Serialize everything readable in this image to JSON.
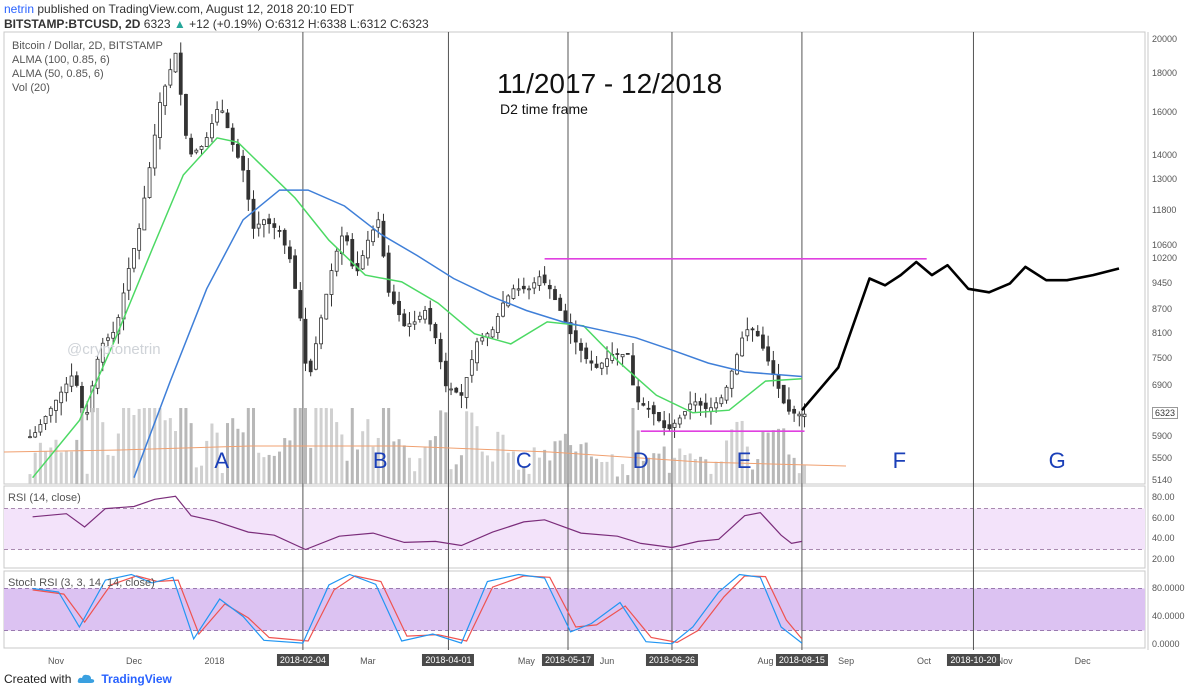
{
  "header": {
    "author": "netrin",
    "published_text": "published on TradingView.com, August 12, 2018 20:10 EDT",
    "symbol": "BITSTAMP:BTCUSD, 2D",
    "last_price": "6323",
    "change": "+12 (+0.19%)",
    "ohlc": [
      {
        "label": "O:",
        "value": "6312"
      },
      {
        "label": "H:",
        "value": "6338"
      },
      {
        "label": "L:",
        "value": "6312"
      },
      {
        "label": "C:",
        "value": "6323"
      }
    ]
  },
  "overlay_labels": [
    "Bitcoin / Dollar, 2D, BITSTAMP",
    "ALMA (100, 0.85, 6)",
    "ALMA (50, 0.85, 6)",
    "Vol (20)"
  ],
  "annotations": {
    "title": "11/2017 - 12/2018",
    "subtitle": "D2 time frame",
    "watermark": "@cryptonetrin",
    "waves": [
      "A",
      "B",
      "C",
      "D",
      "E",
      "F",
      "G"
    ]
  },
  "footer": {
    "created_with": "Created with",
    "brand": "TradingView"
  },
  "colors": {
    "alma_fast": "#4cd964",
    "alma_slow": "#3f7fd8",
    "vol_ma": "#f0a070",
    "magenta": "#e040e0",
    "rsi_line": "#7b2d7b",
    "rsi_band": "#f3e3fa",
    "stoch_band": "#dcc2f2",
    "stoch_k": "#2196f3",
    "stoch_d": "#ef5350",
    "wave_text": "#1a3fb8"
  },
  "chart_data": {
    "type": "candlestick",
    "title": "Bitcoin / Dollar, 2D, BITSTAMP",
    "price_axis": {
      "scale": "log",
      "ticks": [
        20000,
        18000,
        16000,
        14000,
        13000,
        11800,
        10600,
        10200,
        9450,
        8700,
        8100,
        7500,
        6900,
        6323,
        5900,
        5500,
        5140
      ]
    },
    "x_axis_labels": [
      "Nov",
      "Dec",
      "2018",
      "2018-02-04",
      "Mar",
      "2018-04-01",
      "May",
      "2018-05-17",
      "Jun",
      "2018-06-26",
      "Aug",
      "2018-08-15",
      "Sep",
      "Oct",
      "2018-10-20",
      "Nov",
      "Dec"
    ],
    "boxed_x_labels": [
      "2018-02-04",
      "2018-04-01",
      "2018-05-17",
      "2018-06-26",
      "2018-08-15",
      "2018-10-20"
    ],
    "vertical_divider_dates": [
      "2018-02-04",
      "2018-04-01",
      "2018-05-17",
      "2018-06-26",
      "2018-08-15",
      "2018-10-20"
    ],
    "price_close_path": [
      [
        "2017-10-23",
        5900
      ],
      [
        "2017-11-01",
        6600
      ],
      [
        "2017-11-08",
        7200
      ],
      [
        "2017-11-12",
        6100
      ],
      [
        "2017-11-18",
        7800
      ],
      [
        "2017-11-24",
        8200
      ],
      [
        "2017-11-29",
        9900
      ],
      [
        "2017-12-03",
        11200
      ],
      [
        "2017-12-07",
        13500
      ],
      [
        "2017-12-11",
        16500
      ],
      [
        "2017-12-17",
        19200
      ],
      [
        "2017-12-22",
        14000
      ],
      [
        "2017-12-28",
        14500
      ],
      [
        "2018-01-03",
        16500
      ],
      [
        "2018-01-08",
        14500
      ],
      [
        "2018-01-12",
        13400
      ],
      [
        "2018-01-16",
        11200
      ],
      [
        "2018-01-20",
        11500
      ],
      [
        "2018-01-26",
        11100
      ],
      [
        "2018-01-30",
        10200
      ],
      [
        "2018-02-03",
        8500
      ],
      [
        "2018-02-06",
        6900
      ],
      [
        "2018-02-10",
        8200
      ],
      [
        "2018-02-16",
        10200
      ],
      [
        "2018-02-20",
        11200
      ],
      [
        "2018-02-24",
        9600
      ],
      [
        "2018-03-01",
        10800
      ],
      [
        "2018-03-05",
        11500
      ],
      [
        "2018-03-09",
        9200
      ],
      [
        "2018-03-15",
        8300
      ],
      [
        "2018-03-19",
        8400
      ],
      [
        "2018-03-23",
        8700
      ],
      [
        "2018-03-27",
        8000
      ],
      [
        "2018-03-31",
        6900
      ],
      [
        "2018-04-06",
        6700
      ],
      [
        "2018-04-12",
        7900
      ],
      [
        "2018-04-18",
        8200
      ],
      [
        "2018-04-22",
        8900
      ],
      [
        "2018-04-26",
        9300
      ],
      [
        "2018-05-02",
        9300
      ],
      [
        "2018-05-06",
        9650
      ],
      [
        "2018-05-10",
        9300
      ],
      [
        "2018-05-14",
        8700
      ],
      [
        "2018-05-18",
        8100
      ],
      [
        "2018-05-24",
        7500
      ],
      [
        "2018-05-28",
        7300
      ],
      [
        "2018-06-03",
        7600
      ],
      [
        "2018-06-09",
        7600
      ],
      [
        "2018-06-12",
        6600
      ],
      [
        "2018-06-18",
        6400
      ],
      [
        "2018-06-24",
        6000
      ],
      [
        "2018-06-30",
        6300
      ],
      [
        "2018-07-04",
        6600
      ],
      [
        "2018-07-10",
        6400
      ],
      [
        "2018-07-16",
        6700
      ],
      [
        "2018-07-20",
        7400
      ],
      [
        "2018-07-24",
        8200
      ],
      [
        "2018-07-28",
        8200
      ],
      [
        "2018-08-01",
        7600
      ],
      [
        "2018-08-05",
        7000
      ],
      [
        "2018-08-09",
        6400
      ],
      [
        "2018-08-13",
        6323
      ]
    ],
    "series": [
      {
        "name": "ALMA (50, 0.85, 6)",
        "values": [
          [
            "2017-10-23",
            5200
          ],
          [
            "2017-11-10",
            6200
          ],
          [
            "2017-11-24",
            8000
          ],
          [
            "2017-12-08",
            10500
          ],
          [
            "2017-12-20",
            13200
          ],
          [
            "2018-01-02",
            14800
          ],
          [
            "2018-01-10",
            14600
          ],
          [
            "2018-01-20",
            13500
          ],
          [
            "2018-02-01",
            12300
          ],
          [
            "2018-02-14",
            10800
          ],
          [
            "2018-02-28",
            9700
          ],
          [
            "2018-03-14",
            9500
          ],
          [
            "2018-03-28",
            8900
          ],
          [
            "2018-04-11",
            8100
          ],
          [
            "2018-04-25",
            7850
          ],
          [
            "2018-05-09",
            8400
          ],
          [
            "2018-05-23",
            8300
          ],
          [
            "2018-06-06",
            7400
          ],
          [
            "2018-06-20",
            6700
          ],
          [
            "2018-07-04",
            6350
          ],
          [
            "2018-07-18",
            6400
          ],
          [
            "2018-08-01",
            7000
          ],
          [
            "2018-08-15",
            7050
          ]
        ]
      },
      {
        "name": "ALMA (100, 0.85, 6)",
        "values": [
          [
            "2017-12-01",
            5200
          ],
          [
            "2017-12-15",
            7000
          ],
          [
            "2017-12-29",
            9300
          ],
          [
            "2018-01-12",
            11500
          ],
          [
            "2018-01-26",
            12600
          ],
          [
            "2018-02-06",
            12600
          ],
          [
            "2018-02-20",
            12000
          ],
          [
            "2018-03-06",
            11000
          ],
          [
            "2018-03-20",
            10300
          ],
          [
            "2018-04-03",
            9600
          ],
          [
            "2018-04-17",
            9100
          ],
          [
            "2018-05-01",
            8700
          ],
          [
            "2018-05-15",
            8400
          ],
          [
            "2018-05-29",
            8200
          ],
          [
            "2018-06-12",
            8000
          ],
          [
            "2018-06-26",
            7700
          ],
          [
            "2018-07-10",
            7400
          ],
          [
            "2018-07-24",
            7200
          ],
          [
            "2018-08-15",
            7100
          ]
        ]
      }
    ],
    "resistance_level": 10200,
    "support_level": 6000,
    "projection_path": [
      [
        "2018-08-15",
        6400
      ],
      [
        "2018-08-29",
        7300
      ],
      [
        "2018-09-10",
        9600
      ],
      [
        "2018-09-16",
        9400
      ],
      [
        "2018-09-22",
        9700
      ],
      [
        "2018-09-28",
        10100
      ],
      [
        "2018-10-04",
        9700
      ],
      [
        "2018-10-10",
        10000
      ],
      [
        "2018-10-18",
        9300
      ],
      [
        "2018-10-26",
        9200
      ],
      [
        "2018-11-03",
        9450
      ],
      [
        "2018-11-09",
        9950
      ],
      [
        "2018-11-17",
        9550
      ],
      [
        "2018-11-25",
        9550
      ],
      [
        "2018-12-05",
        9700
      ],
      [
        "2018-12-15",
        9900
      ]
    ],
    "wave_label_dates": {
      "A": "2018-01-04",
      "B": "2018-03-06",
      "C": "2018-04-30",
      "D": "2018-06-14",
      "E": "2018-07-24",
      "F": "2018-09-22",
      "G": "2018-11-21"
    },
    "rsi": {
      "title": "RSI (14, close)",
      "ticks": [
        80,
        60,
        40,
        20
      ],
      "band": [
        30,
        70
      ],
      "values": [
        [
          "2017-10-23",
          62
        ],
        [
          "2017-11-05",
          65
        ],
        [
          "2017-11-12",
          52
        ],
        [
          "2017-11-20",
          70
        ],
        [
          "2017-12-01",
          72
        ],
        [
          "2017-12-09",
          79
        ],
        [
          "2017-12-17",
          82
        ],
        [
          "2017-12-23",
          63
        ],
        [
          "2018-01-01",
          58
        ],
        [
          "2018-01-14",
          47
        ],
        [
          "2018-01-24",
          44
        ],
        [
          "2018-02-05",
          30
        ],
        [
          "2018-02-18",
          43
        ],
        [
          "2018-03-03",
          46
        ],
        [
          "2018-03-15",
          37
        ],
        [
          "2018-03-27",
          38
        ],
        [
          "2018-04-06",
          34
        ],
        [
          "2018-04-18",
          47
        ],
        [
          "2018-04-30",
          57
        ],
        [
          "2018-05-08",
          59
        ],
        [
          "2018-05-22",
          46
        ],
        [
          "2018-06-05",
          43
        ],
        [
          "2018-06-14",
          36
        ],
        [
          "2018-06-26",
          32
        ],
        [
          "2018-07-06",
          38
        ],
        [
          "2018-07-14",
          40
        ],
        [
          "2018-07-24",
          63
        ],
        [
          "2018-07-30",
          66
        ],
        [
          "2018-08-07",
          44
        ],
        [
          "2018-08-11",
          36
        ],
        [
          "2018-08-15",
          38
        ]
      ]
    },
    "stoch_rsi": {
      "title": "Stoch RSI (3, 3, 14, 14, close)",
      "ticks": [
        80,
        40,
        0
      ],
      "band": [
        20,
        80
      ],
      "k_values": [
        [
          "2017-10-23",
          80
        ],
        [
          "2017-11-02",
          75
        ],
        [
          "2017-11-10",
          25
        ],
        [
          "2017-11-20",
          92
        ],
        [
          "2017-11-30",
          100
        ],
        [
          "2017-12-08",
          88
        ],
        [
          "2017-12-16",
          96
        ],
        [
          "2017-12-24",
          8
        ],
        [
          "2018-01-03",
          65
        ],
        [
          "2018-01-12",
          40
        ],
        [
          "2018-01-20",
          6
        ],
        [
          "2018-02-04",
          2
        ],
        [
          "2018-02-14",
          85
        ],
        [
          "2018-02-22",
          100
        ],
        [
          "2018-03-04",
          86
        ],
        [
          "2018-03-14",
          5
        ],
        [
          "2018-03-26",
          15
        ],
        [
          "2018-04-06",
          2
        ],
        [
          "2018-04-16",
          90
        ],
        [
          "2018-04-28",
          100
        ],
        [
          "2018-05-08",
          95
        ],
        [
          "2018-05-18",
          18
        ],
        [
          "2018-05-26",
          30
        ],
        [
          "2018-06-06",
          60
        ],
        [
          "2018-06-16",
          4
        ],
        [
          "2018-06-26",
          1
        ],
        [
          "2018-07-04",
          25
        ],
        [
          "2018-07-14",
          75
        ],
        [
          "2018-07-22",
          100
        ],
        [
          "2018-07-30",
          96
        ],
        [
          "2018-08-07",
          25
        ],
        [
          "2018-08-15",
          2
        ]
      ],
      "d_values": [
        [
          "2017-10-23",
          78
        ],
        [
          "2017-11-04",
          72
        ],
        [
          "2017-11-12",
          32
        ],
        [
          "2017-11-22",
          85
        ],
        [
          "2017-12-02",
          98
        ],
        [
          "2017-12-10",
          90
        ],
        [
          "2017-12-18",
          92
        ],
        [
          "2017-12-26",
          15
        ],
        [
          "2018-01-05",
          58
        ],
        [
          "2018-01-14",
          38
        ],
        [
          "2018-01-22",
          10
        ],
        [
          "2018-02-06",
          5
        ],
        [
          "2018-02-16",
          78
        ],
        [
          "2018-02-24",
          98
        ],
        [
          "2018-03-06",
          90
        ],
        [
          "2018-03-16",
          12
        ],
        [
          "2018-03-28",
          14
        ],
        [
          "2018-04-08",
          5
        ],
        [
          "2018-04-18",
          82
        ],
        [
          "2018-04-30",
          98
        ],
        [
          "2018-05-10",
          96
        ],
        [
          "2018-05-20",
          25
        ],
        [
          "2018-05-28",
          28
        ],
        [
          "2018-06-08",
          55
        ],
        [
          "2018-06-18",
          10
        ],
        [
          "2018-06-28",
          3
        ],
        [
          "2018-07-06",
          20
        ],
        [
          "2018-07-16",
          68
        ],
        [
          "2018-07-24",
          98
        ],
        [
          "2018-08-01",
          97
        ],
        [
          "2018-08-09",
          35
        ],
        [
          "2018-08-15",
          8
        ]
      ]
    }
  }
}
